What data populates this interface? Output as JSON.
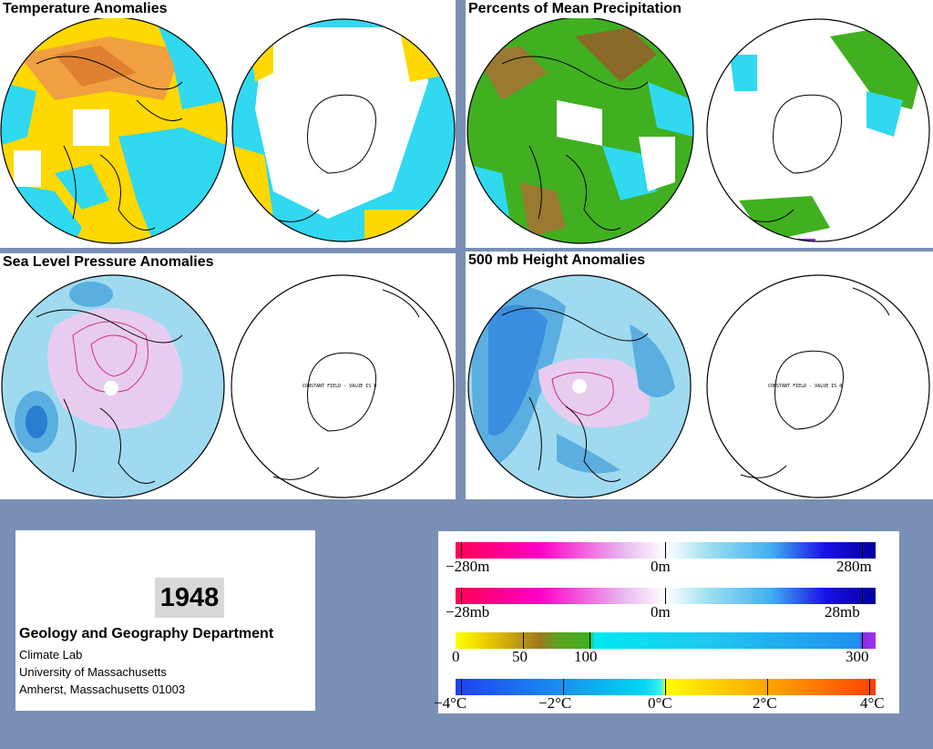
{
  "panels": {
    "temperature": {
      "title": "Temperature Anomalies"
    },
    "precipitation": {
      "title": "Percents of Mean Precipitation"
    },
    "pressure": {
      "title": "Sea Level Pressure Anomalies",
      "constant_label": "CONSTANT FIELD - VALUE IS 0"
    },
    "height": {
      "title": "500 mb Height Anomalies",
      "constant_label": "CONSTANT FIELD - VALUE IS 0"
    }
  },
  "info": {
    "year": "1948",
    "department": "Geology and Geography Department",
    "lab": "Climate Lab",
    "university": "University of Massachusetts",
    "address": "Amherst, Massachusetts 01003"
  },
  "legend": {
    "height_scale": {
      "min": "−280m",
      "mid": "0m",
      "max": "280m"
    },
    "pressure_scale": {
      "min": "−28mb",
      "mid": "0m",
      "max": "28mb"
    },
    "precip_scale": {
      "l0": "0",
      "l50": "50",
      "l100": "100",
      "l300": "300"
    },
    "temp_scale": {
      "m4": "−4°C",
      "m2": "−2°C",
      "z": "0°C",
      "p2": "2°C",
      "p4": "4°C"
    }
  },
  "colors": {
    "background": "#7a8fb5",
    "anomaly_pink": "#ff0090",
    "anomaly_blue": "#0000c0",
    "temp_cold": "#00e0f0",
    "temp_warm": "#ffe000",
    "precip_green": "#40b020"
  }
}
